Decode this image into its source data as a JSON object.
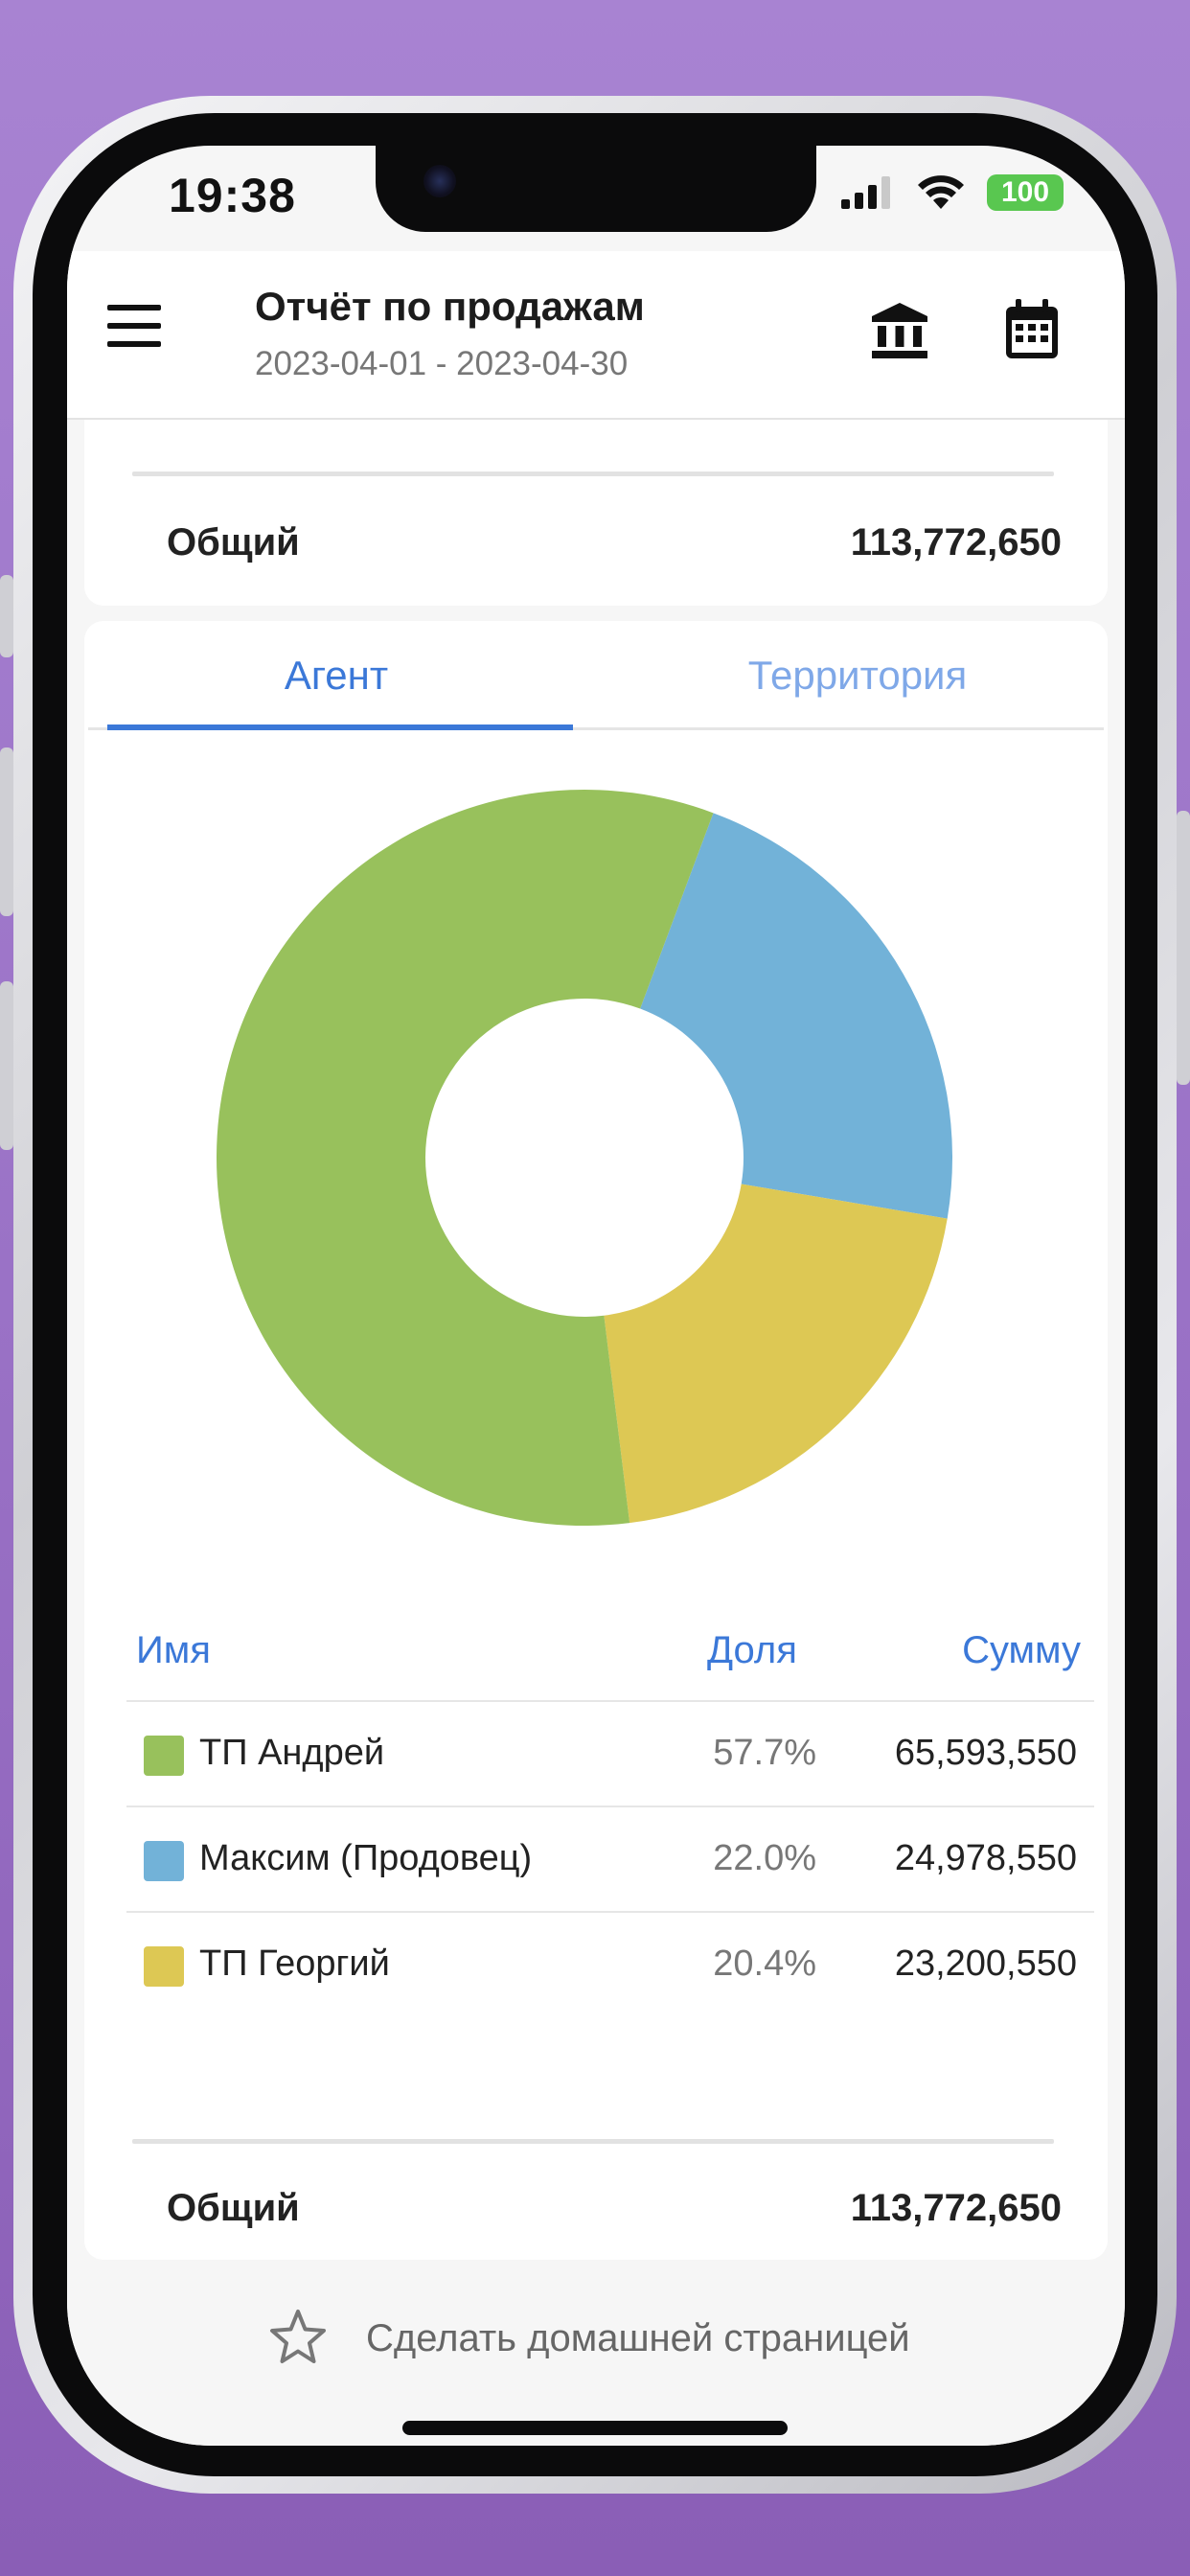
{
  "status_bar": {
    "time": "19:38",
    "battery": "100",
    "icons": [
      "signal-icon",
      "wifi-icon",
      "battery-icon"
    ]
  },
  "app_bar": {
    "title": "Отчёт по продажам",
    "date_range": "2023-04-01 - 2023-04-30",
    "icons": [
      "menu-icon",
      "bank-icon",
      "calendar-icon"
    ]
  },
  "summary_top": {
    "label": "Общий",
    "value": "113,772,650"
  },
  "tabs": [
    {
      "label": "Агент",
      "active": true
    },
    {
      "label": "Территория",
      "active": false
    }
  ],
  "table": {
    "headers": {
      "name": "Имя",
      "share": "Доля",
      "sum": "Сумму"
    },
    "rows": [
      {
        "name": "ТП Андрей",
        "share": "57.7%",
        "sum": "65,593,550",
        "color": "#98c15c"
      },
      {
        "name": "Максим (Продовец)",
        "share": "22.0%",
        "sum": "24,978,550",
        "color": "#72b2d8"
      },
      {
        "name": "ТП Георгий",
        "share": "20.4%",
        "sum": "23,200,550",
        "color": "#ddc854"
      }
    ]
  },
  "summary_bottom": {
    "label": "Общий",
    "value": "113,772,650"
  },
  "footer": {
    "label": "Сделать домашней страницей",
    "icon": "star-icon"
  },
  "chart_data": {
    "type": "pie",
    "variant": "donut",
    "categories": [
      "ТП Андрей",
      "Максим (Продовец)",
      "ТП Георгий"
    ],
    "values": [
      65593550,
      24978550,
      23200550
    ],
    "percentages": [
      57.7,
      22.0,
      20.4
    ],
    "colors": [
      "#98c15c",
      "#72b2d8",
      "#ddc854"
    ],
    "title": ""
  }
}
